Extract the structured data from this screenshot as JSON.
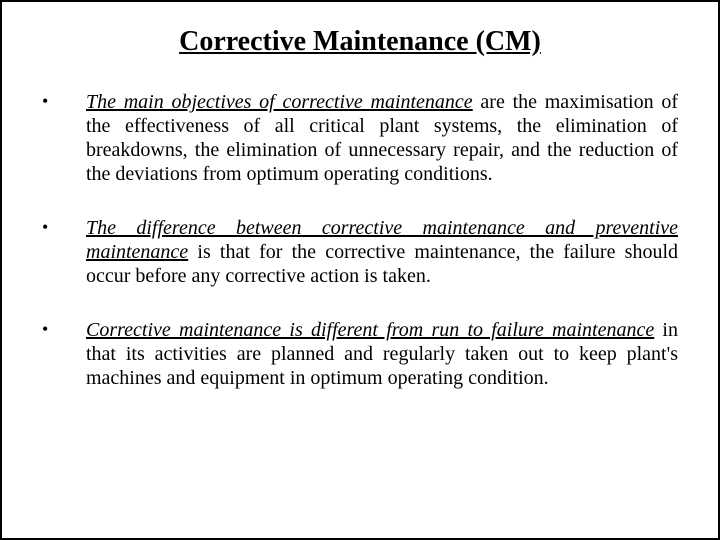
{
  "title": "Corrective Maintenance (CM)",
  "bullets": [
    {
      "lead": "The main objectives of corrective maintenance",
      "rest": " are the maximisation of the effectiveness of all critical plant systems, the elimination of breakdowns, the elimination of unnecessary repair, and the reduction of the deviations from optimum operating conditions."
    },
    {
      "lead": "The difference between corrective maintenance and preventive maintenance",
      "rest": " is that for the corrective maintenance, the failure should occur before any corrective action is taken."
    },
    {
      "lead": "Corrective maintenance is different from run to failure maintenance",
      "rest": " in that its activities are planned and regularly taken out to keep plant's machines and equipment in optimum operating condition."
    }
  ],
  "colors": {
    "text": "#000000",
    "background": "#ffffff",
    "border": "#000000"
  },
  "typography": {
    "title_fontsize": 28,
    "body_fontsize": 20,
    "font_family": "Times New Roman"
  }
}
